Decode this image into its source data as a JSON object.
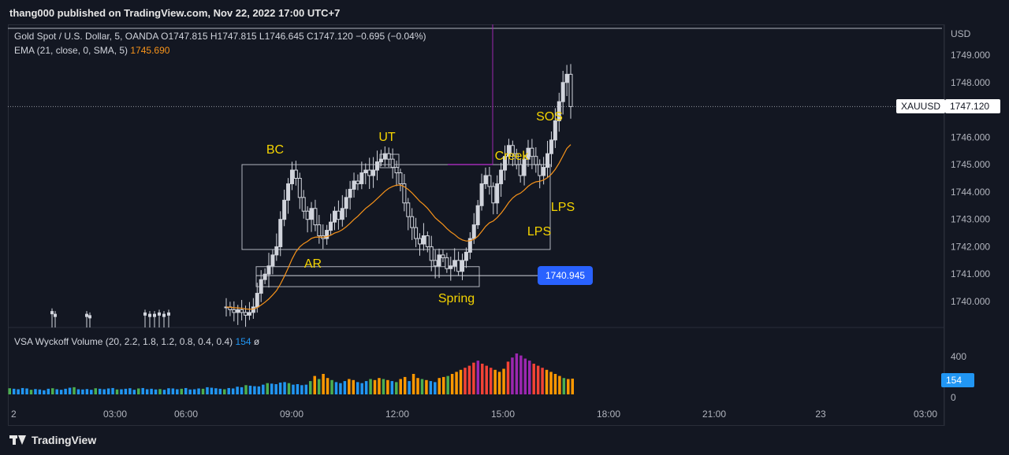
{
  "header": {
    "publisher": "thang000 published on TradingView.com, Nov 22, 2022 17:00 UTC+7"
  },
  "legend": {
    "symbol": "Gold Spot / U.S. Dollar, 5, OANDA",
    "o_label": "O",
    "o": "1747.815",
    "h_label": "H",
    "h": "1747.815",
    "l_label": "L",
    "l": "1746.645",
    "c_label": "C",
    "c": "1747.120",
    "change": "−0.695 (−0.04%)",
    "ema_label": "EMA (21, close, 0, SMA, 5)",
    "ema_value": "1745.690",
    "volume_label": "VSA Wyckoff Volume (20, 2.2, 1.8, 1.2, 0.8, 0.4, 0.4)",
    "volume_value": "154",
    "volume_extra": "ø"
  },
  "axis": {
    "currency": "USD",
    "price_ticks": [
      "1749.000",
      "1748.000",
      "1746.000",
      "1745.000",
      "1744.000",
      "1743.000",
      "1742.000",
      "1741.000",
      "1740.000"
    ],
    "volume_ticks": [
      "400",
      "0"
    ],
    "time_ticks": [
      "2",
      "03:00",
      "06:00",
      "09:00",
      "12:00",
      "15:00",
      "18:00",
      "21:00",
      "23",
      "03:00"
    ]
  },
  "tags": {
    "symbol_tag": "XAUUSD",
    "last_price": "1747.120",
    "level_price": "1740.945",
    "volume_tag": "154"
  },
  "footer": {
    "brand": "TradingView"
  },
  "colors": {
    "background": "#131722",
    "candle": "#d1d4dc",
    "ema": "#f7931a",
    "annotation": "#f5d400",
    "purple_line": "#9c27b0",
    "level_tag": "#2962ff"
  },
  "chart_data": {
    "type": "candlestick",
    "ylim": [
      1739.5,
      1749.5
    ],
    "annotations": [
      {
        "label": "BC",
        "price": 1745.5
      },
      {
        "label": "UT",
        "price": 1745.9
      },
      {
        "label": "Creek",
        "price": 1745.2
      },
      {
        "label": "SOS",
        "price": 1746.6
      },
      {
        "label": "AR",
        "price": 1741.8
      },
      {
        "label": "Spring",
        "price": 1740.2
      },
      {
        "label": "LPS",
        "price": 1743.3
      },
      {
        "label": "LPS",
        "price": 1742.4
      }
    ],
    "levels": {
      "range_top": 1745.0,
      "range_bottom": 1741.9,
      "ar_line": 1741.1,
      "spring_low": 1740.945,
      "last_price": 1747.12
    },
    "close_path": [
      1739.8,
      1739.7,
      1739.6,
      1739.7,
      1739.6,
      1739.5,
      1739.6,
      1739.8,
      1740.3,
      1740.8,
      1741.0,
      1741.3,
      1741.7,
      1742.0,
      1743.0,
      1743.7,
      1744.3,
      1744.8,
      1744.5,
      1743.8,
      1743.3,
      1743.0,
      1743.4,
      1742.8,
      1742.4,
      1742.3,
      1742.6,
      1742.9,
      1743.3,
      1743.0,
      1743.4,
      1743.8,
      1744.1,
      1744.4,
      1744.3,
      1744.7,
      1744.8,
      1744.6,
      1744.8,
      1745.1,
      1745.2,
      1745.4,
      1745.2,
      1744.9,
      1744.7,
      1744.3,
      1743.6,
      1743.1,
      1742.7,
      1742.3,
      1742.1,
      1742.4,
      1742.0,
      1741.5,
      1741.3,
      1741.7,
      1741.6,
      1741.2,
      1741.3,
      1741.5,
      1741.1,
      1741.5,
      1741.8,
      1742.3,
      1742.8,
      1743.5,
      1744.3,
      1744.6,
      1744.2,
      1743.6,
      1744.3,
      1744.8,
      1745.3,
      1745.7,
      1745.4,
      1745.0,
      1744.6,
      1745.2,
      1745.6,
      1745.3,
      1745.0,
      1744.6,
      1744.9,
      1745.4,
      1745.9,
      1746.6,
      1747.3,
      1748.0,
      1748.3,
      1747.12
    ],
    "volume_series": [
      {
        "group": "early",
        "values": [
          60,
          55,
          50,
          62,
          58,
          45,
          52,
          48,
          40,
          55,
          60,
          50,
          45,
          55,
          65,
          70,
          50,
          48,
          52,
          45,
          60,
          55,
          50,
          58,
          62,
          48,
          50,
          55,
          60,
          45,
          58,
          62,
          50,
          55,
          48,
          52,
          45,
          60,
          58,
          50,
          55,
          62,
          48,
          50,
          58,
          55,
          70,
          65,
          60,
          55,
          50,
          62,
          58,
          75,
          70,
          90,
          85,
          80,
          78,
          95,
          110,
          105,
          100,
          115,
          120,
          110,
          95,
          100,
          90,
          95
        ]
      },
      {
        "group": "mid",
        "values": [
          130,
          180,
          150,
          200,
          160,
          140,
          120,
          110,
          130,
          150,
          140,
          120,
          110,
          130,
          150,
          140,
          160,
          150,
          140,
          130,
          120,
          150,
          170,
          130,
          200,
          160,
          150,
          140,
          130,
          120
        ]
      },
      {
        "group": "late",
        "values": [
          160,
          170,
          180,
          200,
          220,
          240,
          260,
          280,
          310,
          330,
          300,
          280,
          260,
          240,
          220,
          250,
          320,
          360,
          400,
          380,
          350,
          330,
          300,
          280,
          260,
          240,
          220,
          200,
          180,
          160,
          150,
          154
        ]
      }
    ]
  }
}
